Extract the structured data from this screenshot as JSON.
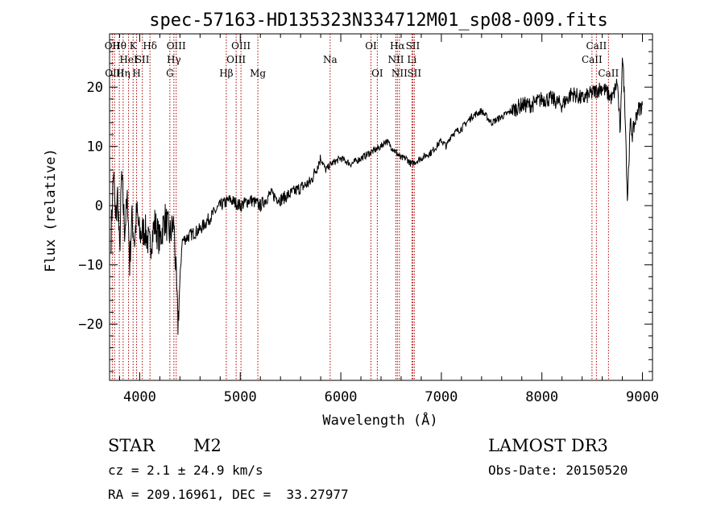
{
  "chart_data": {
    "type": "line",
    "title": "spec-57163-HD135323N334712M01_sp08-009.fits",
    "xlabel": "Wavelength (Å)",
    "ylabel": "Flux (relative)",
    "xlim": [
      3700,
      9100
    ],
    "ylim": [
      -29.5,
      29.0
    ],
    "x_ticks": [
      4000,
      5000,
      6000,
      7000,
      8000,
      9000
    ],
    "x_tick_labels": [
      "4000",
      "5000",
      "6000",
      "7000",
      "8000",
      "9000"
    ],
    "y_ticks": [
      -20,
      -10,
      0,
      10,
      20
    ],
    "y_tick_labels": [
      "−20",
      "−10",
      "0",
      "10",
      "20"
    ],
    "series": [
      {
        "name": "flux",
        "x": [
          3715,
          3740,
          3760,
          3780,
          3800,
          3820,
          3850,
          3880,
          3900,
          3920,
          3950,
          3970,
          4000,
          4050,
          4100,
          4150,
          4200,
          4250,
          4300,
          4340,
          4380,
          4420,
          4500,
          4600,
          4700,
          4800,
          4900,
          5000,
          5100,
          5200,
          5300,
          5400,
          5500,
          5600,
          5700,
          5800,
          5850,
          5900,
          6000,
          6100,
          6200,
          6300,
          6400,
          6450,
          6500,
          6550,
          6600,
          6650,
          6700,
          6800,
          6900,
          7000,
          7050,
          7100,
          7200,
          7300,
          7400,
          7500,
          7600,
          7700,
          7800,
          7900,
          8000,
          8100,
          8200,
          8300,
          8400,
          8500,
          8600,
          8700,
          8750,
          8780,
          8800,
          8830,
          8850,
          8880,
          8900,
          8950,
          9000
        ],
        "values": [
          -5,
          6,
          -3,
          2,
          -8,
          5,
          -4,
          1,
          -10,
          -2,
          -6,
          -1,
          -5,
          -4,
          -7,
          -3,
          -6,
          -2,
          -5,
          -3,
          -20,
          -6,
          -5,
          -4,
          -2,
          0,
          1,
          0,
          1,
          0,
          2,
          1,
          2,
          3,
          4,
          8,
          6,
          7,
          8,
          7,
          8,
          9,
          10,
          11,
          10,
          9,
          8,
          8,
          7,
          8,
          9,
          11,
          10,
          12,
          13,
          15,
          16,
          14,
          15,
          16,
          17,
          17,
          18,
          18,
          17,
          19,
          18,
          19,
          20,
          18,
          21,
          12,
          26,
          15,
          1,
          14,
          12,
          16,
          17
        ]
      }
    ],
    "lines": [
      {
        "x": 3727,
        "top": "OII",
        "mid": "",
        "bot": ""
      },
      {
        "x": 3750,
        "top": "",
        "mid": "",
        "bot": "OIII"
      },
      {
        "x": 3797,
        "top": "Hθ",
        "mid": "",
        "bot": ""
      },
      {
        "x": 3835,
        "top": "",
        "mid": "",
        "bot": "Hη"
      },
      {
        "x": 3889,
        "top": "",
        "mid": "HeI",
        "bot": ""
      },
      {
        "x": 3934,
        "top": "K",
        "mid": "",
        "bot": ""
      },
      {
        "x": 3969,
        "top": "",
        "mid": "",
        "bot": "H"
      },
      {
        "x": 4026,
        "top": "",
        "mid": "SII",
        "bot": ""
      },
      {
        "x": 4102,
        "top": "Hδ",
        "mid": "",
        "bot": ""
      },
      {
        "x": 4300,
        "top": "",
        "mid": "",
        "bot": "G"
      },
      {
        "x": 4340,
        "top": "",
        "mid": "Hγ",
        "bot": ""
      },
      {
        "x": 4363,
        "top": "OIII",
        "mid": "",
        "bot": ""
      },
      {
        "x": 4861,
        "top": "",
        "mid": "",
        "bot": "Hβ"
      },
      {
        "x": 4959,
        "top": "",
        "mid": "OIII",
        "bot": ""
      },
      {
        "x": 5007,
        "top": "OIII",
        "mid": "",
        "bot": ""
      },
      {
        "x": 5175,
        "top": "",
        "mid": "",
        "bot": "Mg"
      },
      {
        "x": 5894,
        "top": "",
        "mid": "Na",
        "bot": ""
      },
      {
        "x": 6300,
        "top": "OI",
        "mid": "",
        "bot": ""
      },
      {
        "x": 6363,
        "top": "",
        "mid": "",
        "bot": "OI"
      },
      {
        "x": 6548,
        "top": "",
        "mid": "NII",
        "bot": ""
      },
      {
        "x": 6563,
        "top": "Hα",
        "mid": "",
        "bot": ""
      },
      {
        "x": 6583,
        "top": "",
        "mid": "",
        "bot": "NII"
      },
      {
        "x": 6707,
        "top": "",
        "mid": "Li",
        "bot": ""
      },
      {
        "x": 6716,
        "top": "SII",
        "mid": "",
        "bot": ""
      },
      {
        "x": 6731,
        "top": "",
        "mid": "",
        "bot": "SII"
      },
      {
        "x": 8498,
        "top": "",
        "mid": "CaII",
        "bot": ""
      },
      {
        "x": 8542,
        "top": "CaII",
        "mid": "",
        "bot": ""
      },
      {
        "x": 8662,
        "top": "",
        "mid": "",
        "bot": "CaII"
      }
    ],
    "line_color": "#aa0000",
    "spectrum_color": "#000000"
  },
  "info": {
    "object_class": "STAR",
    "subclass": "M2",
    "survey": "LAMOST DR3",
    "redshift": "cz = 2.1 ± 24.9 km/s",
    "obs_date": "Obs-Date: 20150520",
    "coords": "RA = 209.16961, DEC =  33.27977"
  }
}
